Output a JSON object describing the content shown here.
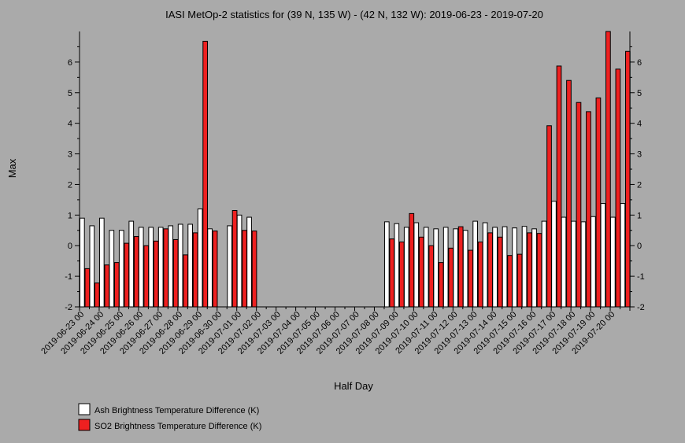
{
  "chart_data": {
    "type": "bar",
    "title": "IASI MetOp-2 statistics for (39 N, 135 W) - (42 N, 132 W): 2019-06-23 - 2019-07-20",
    "xlabel": "Half Day",
    "ylabel": "Max",
    "ylim": [
      -2,
      7
    ],
    "yticks": [
      -2,
      -1,
      0,
      1,
      2,
      3,
      4,
      5,
      6
    ],
    "grid": false,
    "legend_position": "bottom-left",
    "categories": [
      "2019-06-23 00",
      "2019-06-23 12",
      "2019-06-24 00",
      "2019-06-24 12",
      "2019-06-25 00",
      "2019-06-25 12",
      "2019-06-26 00",
      "2019-06-26 12",
      "2019-06-27 00",
      "2019-06-27 12",
      "2019-06-28 00",
      "2019-06-28 12",
      "2019-06-29 00",
      "2019-06-29 12",
      "2019-06-30 00",
      "2019-06-30 12",
      "2019-07-01 00",
      "2019-07-01 12",
      "2019-07-02 00",
      "2019-07-02 12",
      "2019-07-03 00",
      "2019-07-03 12",
      "2019-07-04 00",
      "2019-07-04 12",
      "2019-07-05 00",
      "2019-07-05 12",
      "2019-07-06 00",
      "2019-07-06 12",
      "2019-07-07 00",
      "2019-07-07 12",
      "2019-07-08 00",
      "2019-07-08 12",
      "2019-07-09 00",
      "2019-07-09 12",
      "2019-07-10 00",
      "2019-07-10 12",
      "2019-07-11 00",
      "2019-07-11 12",
      "2019-07-12 00",
      "2019-07-12 12",
      "2019-07-13 00",
      "2019-07-13 12",
      "2019-07-14 00",
      "2019-07-14 12",
      "2019-07-15 00",
      "2019-07-15 12",
      "2019-07-16 00",
      "2019-07-16 12",
      "2019-07-17 00",
      "2019-07-17 12",
      "2019-07-18 00",
      "2019-07-18 12",
      "2019-07-19 00",
      "2019-07-19 12",
      "2019-07-20 00",
      "2019-07-20 12"
    ],
    "tick_labels": [
      "2019-06-23 00",
      "2019-06-24 00",
      "2019-06-25 00",
      "2019-06-26 00",
      "2019-06-27 00",
      "2019-06-28 00",
      "2019-06-29 00",
      "2019-06-30 00",
      "2019-07-01 00",
      "2019-07-02 00",
      "2019-07-03 00",
      "2019-07-04 00",
      "2019-07-05 00",
      "2019-07-06 00",
      "2019-07-07 00",
      "2019-07-08 00",
      "2019-07-09 00",
      "2019-07-10 00",
      "2019-07-11 00",
      "2019-07-12 00",
      "2019-07-13 00",
      "2019-07-14 00",
      "2019-07-15 00",
      "2019-07-16 00",
      "2019-07-17 00",
      "2019-07-18 00",
      "2019-07-19 00",
      "2019-07-20 00"
    ],
    "series": [
      {
        "name": "Ash Brightness Temperature Difference (K)",
        "color": "#ffffff",
        "values": [
          0.9,
          0.65,
          0.9,
          0.5,
          0.5,
          0.8,
          0.6,
          0.6,
          0.6,
          0.65,
          0.7,
          0.7,
          1.2,
          0.55,
          null,
          0.65,
          1.0,
          0.93,
          null,
          null,
          null,
          null,
          null,
          null,
          null,
          null,
          null,
          null,
          null,
          null,
          null,
          0.78,
          0.72,
          0.6,
          0.75,
          0.6,
          0.55,
          0.6,
          0.55,
          0.5,
          0.8,
          0.75,
          0.6,
          0.62,
          0.58,
          0.63,
          0.55,
          0.8,
          1.45,
          0.93,
          0.8,
          0.78,
          0.95,
          1.38,
          0.93,
          1.38
        ]
      },
      {
        "name": "SO2 Brightness Temperature Difference (K)",
        "color": "#ee2020",
        "values": [
          -0.75,
          -1.22,
          -0.63,
          -0.55,
          0.08,
          0.3,
          0.0,
          0.15,
          0.55,
          0.2,
          -0.3,
          0.42,
          6.68,
          0.48,
          null,
          1.15,
          0.5,
          0.48,
          null,
          null,
          null,
          null,
          null,
          null,
          null,
          null,
          null,
          null,
          null,
          null,
          null,
          0.22,
          0.12,
          1.05,
          0.28,
          0.0,
          -0.55,
          -0.08,
          0.62,
          -0.15,
          0.12,
          0.42,
          0.28,
          -0.32,
          -0.28,
          0.42,
          0.4,
          3.92,
          5.87,
          5.4,
          4.68,
          4.38,
          4.83,
          7.02,
          5.77,
          6.35
        ]
      }
    ]
  }
}
